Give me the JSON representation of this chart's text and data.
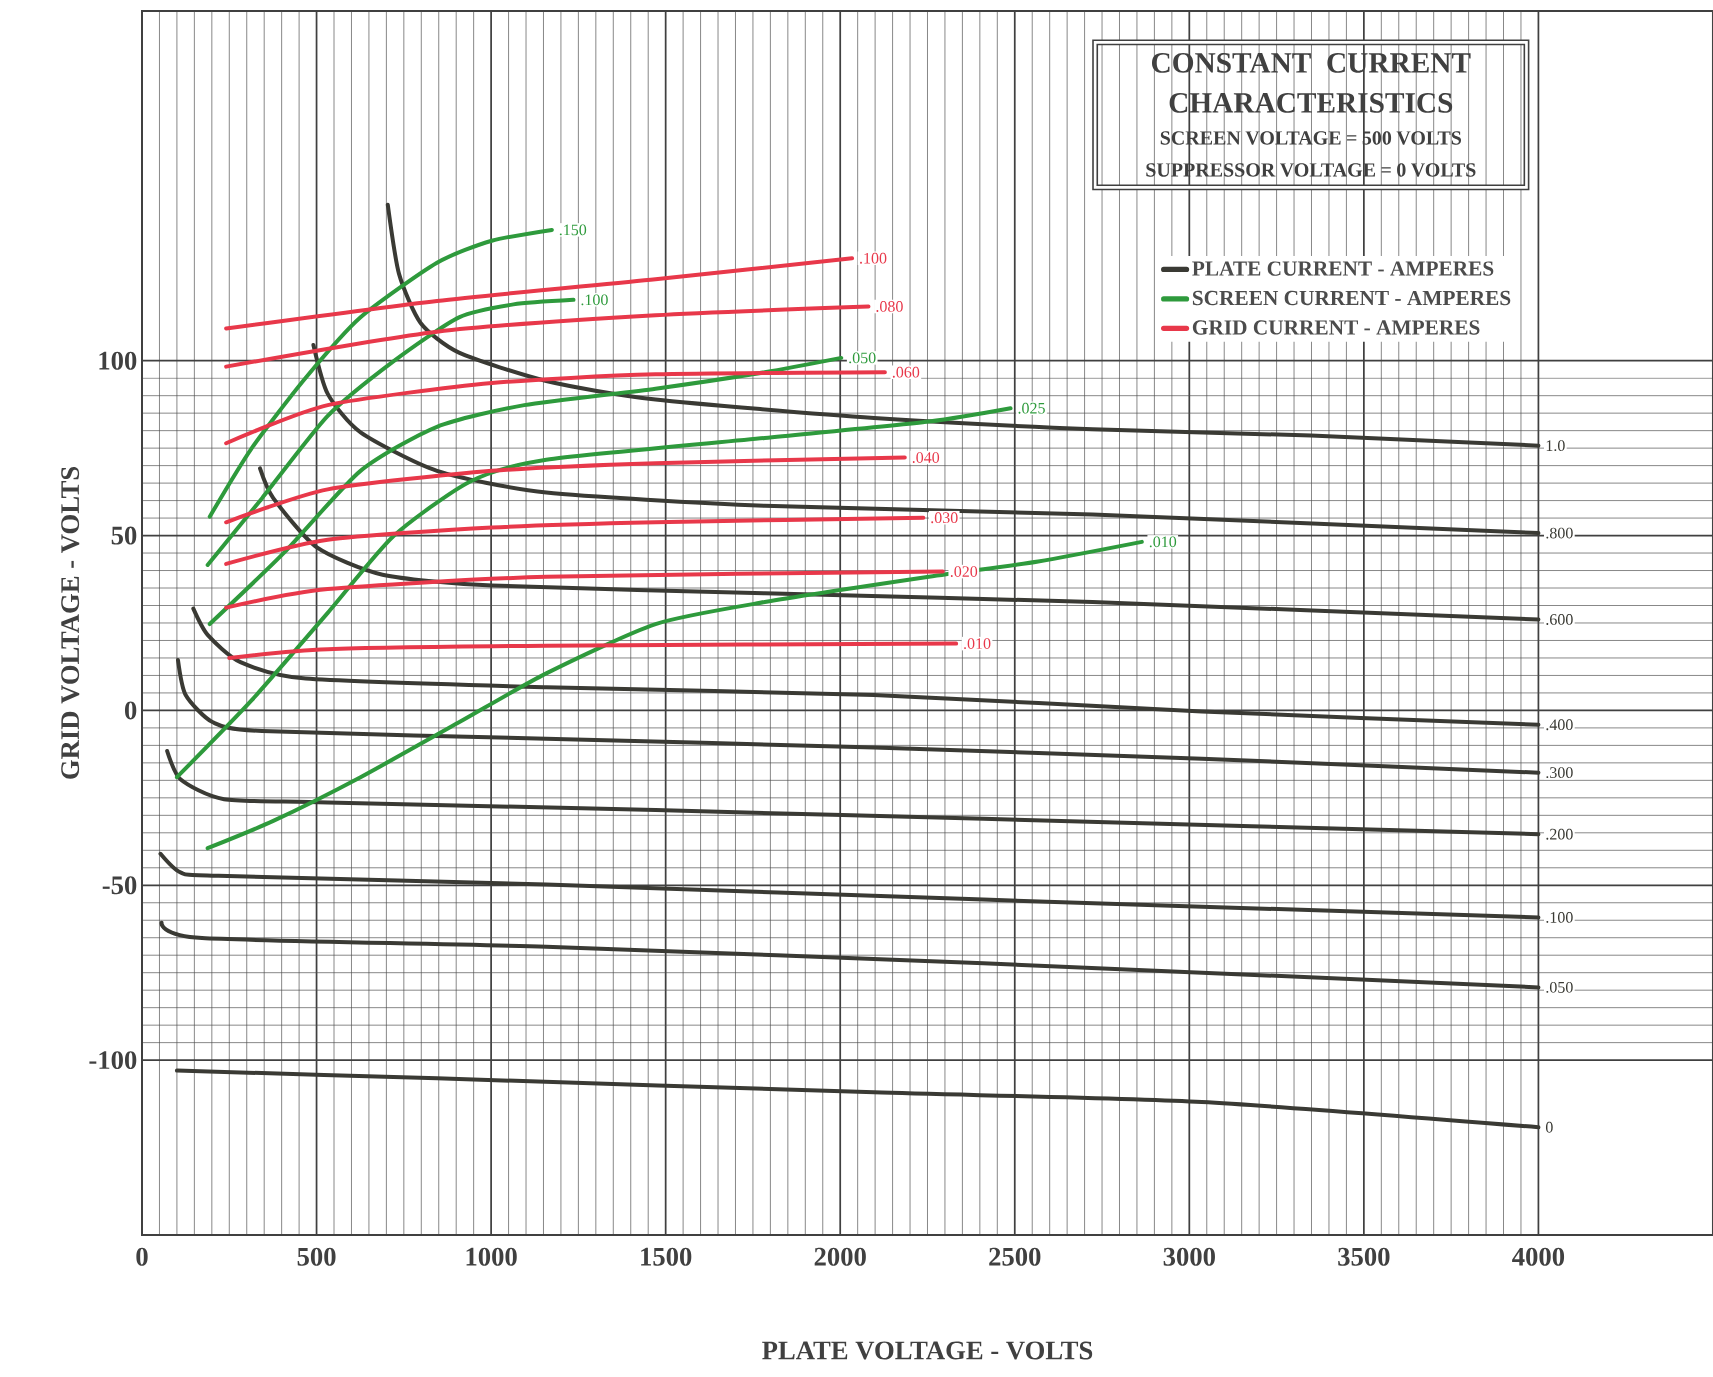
{
  "chart_data": {
    "type": "line",
    "title": "CONSTANT CURRENT CHARACTERISTICS",
    "subtitle": "SCREEN VOLTAGE = 500 VOLTS",
    "xlabel": "PLATE VOLTAGE - VOLTS",
    "ylabel": "GRID VOLTAGE - VOLTS",
    "xlim": [
      0,
      4500
    ],
    "ylim": [
      -150,
      200
    ],
    "xticks": [
      0,
      500,
      1000,
      1500,
      2000,
      2500,
      3000,
      3500,
      4000
    ],
    "yticks": [
      -100,
      -50,
      0,
      50,
      100
    ],
    "grid": true,
    "legend": "top right",
    "marker": "none",
    "line_style": "solid",
    "series": [
      {
        "name": "PLATE CURRENT - AMPERES",
        "color": "#3a3a34",
        "x": [
          704,
          736,
          798,
          908,
          1158,
          1471,
          2097,
          2723,
          3349,
          4000
        ],
        "values": [
          144.6,
          124.9,
          110.8,
          102.3,
          94.2,
          88.9,
          83.6,
          80.4,
          78.6,
          75.7
        ]
      },
      {
        "color": "#3a3a34",
        "x": [
          491,
          532,
          626,
          845,
          1158,
          1784,
          2723,
          4000
        ],
        "values": [
          104.5,
          90.5,
          79.5,
          68.5,
          62.3,
          58.5,
          56,
          50.7
        ]
      },
      {
        "color": "#3a3a34",
        "x": [
          338,
          376,
          501,
          689,
          1002,
          1784,
          2723,
          4000
        ],
        "values": [
          69.2,
          60.7,
          46.6,
          38.8,
          35.7,
          33.5,
          31,
          26
        ]
      },
      {
        "color": "#3a3a34",
        "x": [
          147,
          188,
          282,
          469,
          1158,
          2097,
          3036,
          4000
        ],
        "values": [
          29.1,
          21.6,
          13.8,
          9.1,
          6.6,
          4.4,
          -0.3,
          -4.1
        ]
      },
      {
        "color": "#3a3a34",
        "x": [
          103,
          125,
          203,
          344,
          1158,
          2097,
          3036,
          4000
        ],
        "values": [
          14.4,
          4.4,
          -3.4,
          -5.9,
          -8.1,
          -10.6,
          -13.8,
          -17.8
        ]
      },
      {
        "color": "#3a3a34",
        "x": [
          72,
          110,
          235,
          532,
          1471,
          2410,
          4000
        ],
        "values": [
          -11.6,
          -19.7,
          -25.4,
          -26.3,
          -28.5,
          -31,
          -35.4
        ]
      },
      {
        "color": "#3a3a34",
        "x": [
          53,
          110,
          219,
          1158,
          2410,
          4000
        ],
        "values": [
          -41,
          -46.3,
          -47.3,
          -49.8,
          -54.1,
          -59.2
        ]
      },
      {
        "color": "#3a3a34",
        "x": [
          56,
          172,
          1158,
          2410,
          4000
        ],
        "values": [
          -60.7,
          -65.1,
          -67.6,
          -72.3,
          -79.2
        ]
      },
      {
        "color": "#3a3a34",
        "x": [
          100,
          845,
          2097,
          3036,
          4000
        ],
        "values": [
          -103,
          -105.2,
          -109.2,
          -112,
          -119.2
        ]
      },
      {
        "name": "SCREEN CURRENT - AMPERES",
        "color": "#2e9a3c",
        "x": [
          194,
          313,
          469,
          626,
          845,
          1002,
          1174
        ],
        "values": [
          55.4,
          74.8,
          95.1,
          112.4,
          128,
          134.3,
          137.4
        ]
      },
      {
        "color": "#2e9a3c",
        "x": [
          188,
          344,
          532,
          720,
          908,
          1064,
          1236
        ],
        "values": [
          41.6,
          60.7,
          84.2,
          99.8,
          112.4,
          116.1,
          117.4
        ]
      },
      {
        "color": "#2e9a3c",
        "x": [
          194,
          407,
          626,
          845,
          1095,
          1471,
          1784,
          2003
        ],
        "values": [
          24.7,
          45.1,
          68.5,
          81.1,
          87.3,
          92,
          96.7,
          100.8
        ]
      },
      {
        "color": "#2e9a3c",
        "x": [
          100,
          313,
          532,
          720,
          939,
          1158,
          1784,
          2254,
          2488
        ],
        "values": [
          -19.1,
          2.8,
          27.9,
          49.8,
          65.4,
          71.7,
          77.9,
          82.6,
          86.4
        ]
      },
      {
        "color": "#2e9a3c",
        "x": [
          188,
          376,
          626,
          908,
          1158,
          1471,
          1784,
          2254,
          2567,
          2864
        ],
        "values": [
          -39.4,
          -31.6,
          -19.1,
          -3.4,
          10.6,
          24.7,
          31,
          38.2,
          42.6,
          48.2
        ]
      },
      {
        "name": "GRID CURRENT - AMPERES",
        "color": "#e8384a",
        "x": [
          241,
          845,
          1471,
          2034
        ],
        "values": [
          109.2,
          117.1,
          123.3,
          129.3
        ]
      },
      {
        "color": "#e8384a",
        "x": [
          241,
          845,
          1471,
          2081
        ],
        "values": [
          98.3,
          108.3,
          113,
          115.5
        ]
      },
      {
        "color": "#e8384a",
        "x": [
          241,
          532,
          1002,
          1471,
          2128
        ],
        "values": [
          76.4,
          87.3,
          93.6,
          96.1,
          96.7
        ]
      },
      {
        "color": "#e8384a",
        "x": [
          241,
          532,
          1002,
          1471,
          2185
        ],
        "values": [
          53.8,
          63.2,
          68.5,
          70.7,
          72.3
        ]
      },
      {
        "color": "#e8384a",
        "x": [
          241,
          532,
          1002,
          1471,
          2238
        ],
        "values": [
          41.9,
          48.8,
          52.3,
          53.8,
          55.1
        ]
      },
      {
        "color": "#e8384a",
        "x": [
          241,
          532,
          1158,
          2294
        ],
        "values": [
          29.4,
          34.7,
          38.2,
          39.7
        ]
      },
      {
        "color": "#e8384a",
        "x": [
          250,
          532,
          1158,
          2332
        ],
        "values": [
          15,
          17.5,
          18.5,
          19.1
        ]
      }
    ],
    "annotations": [
      "SUPPRESSOR VOLTAGE = 0 VOLTS",
      {
        "text": "1.0",
        "x": 4000,
        "y": 75.7
      },
      {
        "text": ".800",
        "x": 4000,
        "y": 50.7
      },
      {
        "text": ".600",
        "x": 4000,
        "y": 26
      },
      {
        "text": ".400",
        "x": 4000,
        "y": -4.1
      },
      {
        "text": ".300",
        "x": 4000,
        "y": -17.8
      },
      {
        "text": ".200",
        "x": 4000,
        "y": -35.4
      },
      {
        "text": ".100",
        "x": 4000,
        "y": -59.2
      },
      {
        "text": ".050",
        "x": 4000,
        "y": -79.2
      },
      {
        "text": "0",
        "x": 4000,
        "y": -119.2
      },
      {
        "text": ".150",
        "x": 1174,
        "y": 137.4
      },
      {
        "text": ".100",
        "x": 1236,
        "y": 117.4
      },
      {
        "text": ".050",
        "x": 2003,
        "y": 100.8
      },
      {
        "text": ".025",
        "x": 2488,
        "y": 86.4
      },
      {
        "text": ".010",
        "x": 2864,
        "y": 48.2
      },
      {
        "text": ".100",
        "x": 2034,
        "y": 129.3
      },
      {
        "text": ".080",
        "x": 2081,
        "y": 115.5
      },
      {
        "text": ".060",
        "x": 2128,
        "y": 96.7
      },
      {
        "text": ".040",
        "x": 2185,
        "y": 72.3
      },
      {
        "text": ".030",
        "x": 2238,
        "y": 55.1
      },
      {
        "text": ".020",
        "x": 2294,
        "y": 39.7
      },
      {
        "text": ".010",
        "x": 2332,
        "y": 19.1
      }
    ]
  }
}
